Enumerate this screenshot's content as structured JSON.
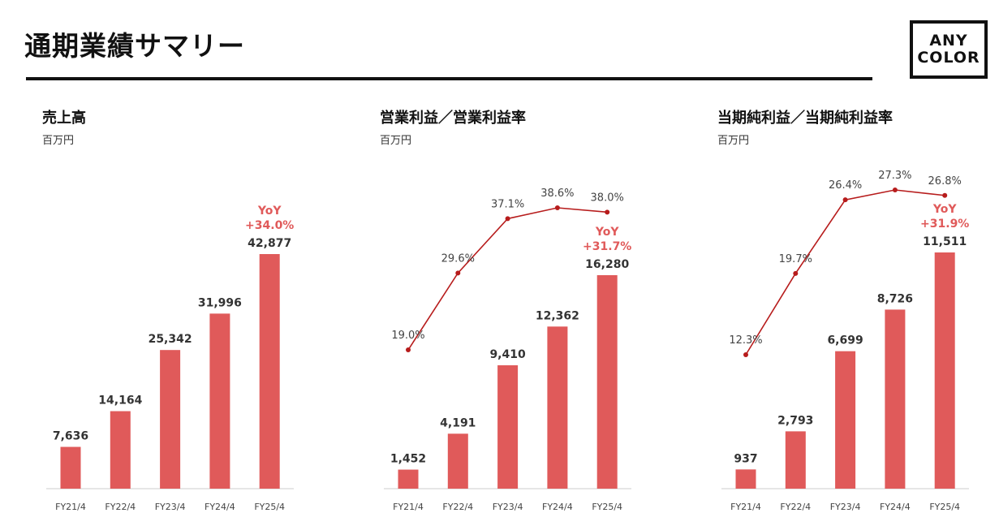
{
  "page": {
    "title": "通期業績サマリー",
    "logo": {
      "line1": "ANY",
      "line2": "COLOR"
    }
  },
  "colors": {
    "bar": "#E05A5A",
    "line": "#B71C1C",
    "yoy_text": "#E05A5A",
    "axis": "#cccccc"
  },
  "chart_data": [
    {
      "type": "bar",
      "title": "売上高",
      "unit": "百万円",
      "categories": [
        "FY21/4",
        "FY22/4",
        "FY23/4",
        "FY24/4",
        "FY25/4"
      ],
      "values": [
        7636,
        14164,
        25342,
        31996,
        42877
      ],
      "value_labels": [
        "7,636",
        "14,164",
        "25,342",
        "31,996",
        "42,877"
      ],
      "yoy": {
        "label": "YoY",
        "value": "+34.0%"
      }
    },
    {
      "type": "bar+line",
      "title": "営業利益／営業利益率",
      "unit": "百万円",
      "categories": [
        "FY21/4",
        "FY22/4",
        "FY23/4",
        "FY24/4",
        "FY25/4"
      ],
      "values": [
        1452,
        4191,
        9410,
        12362,
        16280
      ],
      "value_labels": [
        "1,452",
        "4,191",
        "9,410",
        "12,362",
        "16,280"
      ],
      "line_values": [
        19.0,
        29.6,
        37.1,
        38.6,
        38.0
      ],
      "line_labels": [
        "19.0%",
        "29.6%",
        "37.1%",
        "38.6%",
        "38.0%"
      ],
      "yoy": {
        "label": "YoY",
        "value": "+31.7%"
      }
    },
    {
      "type": "bar+line",
      "title": "当期純利益／当期純利益率",
      "unit": "百万円",
      "categories": [
        "FY21/4",
        "FY22/4",
        "FY23/4",
        "FY24/4",
        "FY25/4"
      ],
      "values": [
        937,
        2793,
        6699,
        8726,
        11511
      ],
      "value_labels": [
        "937",
        "2,793",
        "6,699",
        "8,726",
        "11,511"
      ],
      "line_values": [
        12.3,
        19.7,
        26.4,
        27.3,
        26.8
      ],
      "line_labels": [
        "12.3%",
        "19.7%",
        "26.4%",
        "27.3%",
        "26.8%"
      ],
      "yoy": {
        "label": "YoY",
        "value": "+31.9%"
      }
    }
  ]
}
